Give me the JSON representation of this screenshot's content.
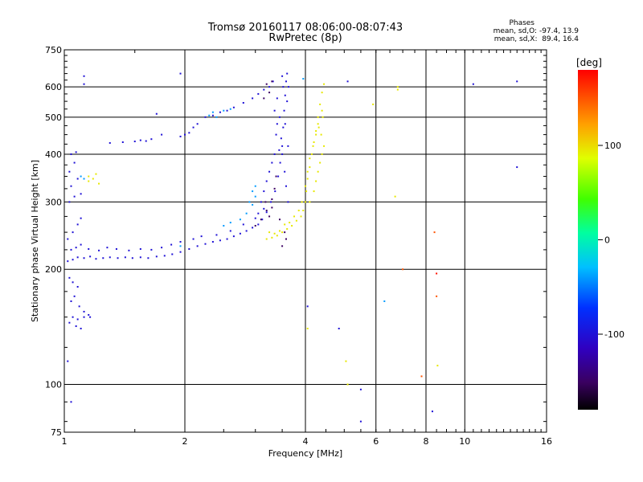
{
  "header": {
    "title_line1": "Tromsø 20160117 08:06:00-08:07:43",
    "title_line2": "RwPretec (8p)"
  },
  "phase_box": {
    "title": "Phases",
    "line_o": "mean, sd,O: -97.4, 13.9",
    "line_x": "mean, sd,X:  89.4, 16.4"
  },
  "colorbar": {
    "unit_label": "[deg]",
    "ticks": [
      {
        "value": 100,
        "label": "100"
      },
      {
        "value": 0,
        "label": "0"
      },
      {
        "value": -100,
        "label": "-100"
      }
    ],
    "range": [
      -180,
      180
    ]
  },
  "chart_data": {
    "type": "scatter",
    "xlabel": "Frequency [MHz]",
    "ylabel": "Stationary phase Virtual Height [km]",
    "xscale": "log",
    "yscale": "log",
    "xlim": [
      1,
      16
    ],
    "ylim": [
      75,
      750
    ],
    "xticks": [
      {
        "value": 1,
        "label": "1"
      },
      {
        "value": 2,
        "label": "2"
      },
      {
        "value": 4,
        "label": "4"
      },
      {
        "value": 6,
        "label": "6"
      },
      {
        "value": 8,
        "label": "8"
      },
      {
        "value": 10,
        "label": "10"
      },
      {
        "value": 16,
        "label": "16"
      }
    ],
    "yticks": [
      {
        "value": 75,
        "label": "75"
      },
      {
        "value": 100,
        "label": "100"
      },
      {
        "value": 200,
        "label": "200"
      },
      {
        "value": 300,
        "label": "300"
      },
      {
        "value": 400,
        "label": "400"
      },
      {
        "value": 500,
        "label": "500"
      },
      {
        "value": 600,
        "label": "600"
      },
      {
        "value": 750,
        "label": "750"
      }
    ],
    "grid": true,
    "series": [
      {
        "phase": -100,
        "points": [
          [
            1.02,
            210
          ],
          [
            1.05,
            212
          ],
          [
            1.08,
            215
          ],
          [
            1.12,
            214
          ],
          [
            1.16,
            216
          ],
          [
            1.2,
            213
          ],
          [
            1.25,
            214
          ],
          [
            1.3,
            215
          ],
          [
            1.36,
            214
          ],
          [
            1.42,
            215
          ],
          [
            1.48,
            214
          ],
          [
            1.55,
            215
          ],
          [
            1.62,
            214
          ],
          [
            1.7,
            216
          ],
          [
            1.78,
            217
          ],
          [
            1.86,
            219
          ],
          [
            1.95,
            222
          ],
          [
            2.05,
            226
          ],
          [
            2.15,
            230
          ],
          [
            2.25,
            233
          ],
          [
            2.35,
            236
          ],
          [
            2.45,
            238
          ],
          [
            2.55,
            240
          ],
          [
            2.65,
            244
          ],
          [
            2.75,
            248
          ],
          [
            2.85,
            252
          ],
          [
            2.95,
            257
          ],
          [
            3.05,
            262
          ],
          [
            3.12,
            270
          ],
          [
            3.2,
            282
          ],
          [
            3.28,
            300
          ],
          [
            3.36,
            320
          ],
          [
            3.42,
            350
          ],
          [
            3.46,
            380
          ],
          [
            3.5,
            420
          ],
          [
            3.52,
            470
          ],
          [
            3.54,
            520
          ],
          [
            3.56,
            570
          ],
          [
            3.58,
            620
          ],
          [
            3.6,
            650
          ],
          [
            1.04,
            225
          ],
          [
            1.07,
            228
          ],
          [
            1.1,
            232
          ],
          [
            1.15,
            226
          ],
          [
            1.22,
            224
          ],
          [
            1.28,
            228
          ],
          [
            1.35,
            226
          ],
          [
            1.45,
            224
          ],
          [
            1.55,
            226
          ],
          [
            1.65,
            225
          ],
          [
            1.75,
            228
          ],
          [
            1.85,
            232
          ],
          [
            1.95,
            236
          ],
          [
            2.1,
            240
          ],
          [
            2.2,
            244
          ],
          [
            2.4,
            246
          ],
          [
            2.6,
            252
          ],
          [
            2.8,
            262
          ],
          [
            3.0,
            272
          ],
          [
            3.15,
            288
          ],
          [
            1.02,
            240
          ],
          [
            1.05,
            250
          ],
          [
            1.08,
            262
          ],
          [
            1.1,
            272
          ],
          [
            1.03,
            300
          ],
          [
            1.06,
            310
          ],
          [
            1.1,
            315
          ],
          [
            1.04,
            330
          ],
          [
            1.08,
            345
          ],
          [
            1.03,
            360
          ],
          [
            1.06,
            380
          ],
          [
            1.04,
            400
          ],
          [
            1.07,
            405
          ],
          [
            1.03,
            190
          ],
          [
            1.05,
            185
          ],
          [
            1.08,
            180
          ],
          [
            1.06,
            170
          ],
          [
            1.04,
            165
          ],
          [
            1.09,
            160
          ],
          [
            1.12,
            155
          ],
          [
            1.15,
            152
          ],
          [
            1.05,
            150
          ],
          [
            1.08,
            148
          ],
          [
            1.12,
            150
          ],
          [
            1.16,
            150
          ],
          [
            1.03,
            145
          ],
          [
            1.07,
            142
          ],
          [
            1.1,
            140
          ],
          [
            1.02,
            115
          ],
          [
            1.04,
            90
          ],
          [
            1.4,
            430
          ],
          [
            1.5,
            432
          ],
          [
            1.55,
            435
          ],
          [
            1.6,
            433
          ],
          [
            1.65,
            438
          ],
          [
            1.3,
            428
          ],
          [
            1.75,
            450
          ],
          [
            1.95,
            445
          ],
          [
            2.0,
            450
          ],
          [
            2.05,
            455
          ],
          [
            2.1,
            470
          ],
          [
            2.15,
            480
          ],
          [
            2.25,
            500
          ],
          [
            2.35,
            505
          ],
          [
            2.45,
            515
          ],
          [
            2.55,
            520
          ],
          [
            2.65,
            530
          ],
          [
            2.8,
            545
          ],
          [
            2.95,
            560
          ],
          [
            3.05,
            575
          ],
          [
            3.15,
            590
          ],
          [
            3.25,
            600
          ],
          [
            3.32,
            620
          ],
          [
            3.35,
            520
          ],
          [
            3.4,
            480
          ],
          [
            3.48,
            440
          ],
          [
            3.5,
            400
          ],
          [
            3.55,
            360
          ],
          [
            3.58,
            330
          ],
          [
            3.62,
            300
          ],
          [
            3.45,
            500
          ],
          [
            3.6,
            550
          ],
          [
            3.63,
            600
          ],
          [
            3.4,
            560
          ],
          [
            3.38,
            450
          ],
          [
            3.44,
            410
          ],
          [
            3.56,
            480
          ],
          [
            3.62,
            420
          ],
          [
            3.52,
            600
          ],
          [
            3.5,
            640
          ],
          [
            3.05,
            280
          ],
          [
            3.1,
            300
          ],
          [
            3.15,
            320
          ],
          [
            3.2,
            340
          ],
          [
            3.25,
            360
          ],
          [
            3.3,
            380
          ],
          [
            3.35,
            400
          ],
          [
            5.1,
            620
          ],
          [
            10.5,
            610
          ],
          [
            13.5,
            620
          ],
          [
            1.12,
            640
          ],
          [
            1.12,
            610
          ],
          [
            1.95,
            650
          ],
          [
            1.7,
            510
          ],
          [
            13.5,
            370
          ],
          [
            4.85,
            140
          ],
          [
            5.5,
            97
          ],
          [
            5.5,
            80
          ],
          [
            8.3,
            85
          ],
          [
            4.05,
            160
          ]
        ]
      },
      {
        "phase": -150,
        "points": [
          [
            3.0,
            260
          ],
          [
            3.1,
            270
          ],
          [
            3.2,
            285
          ],
          [
            3.3,
            305
          ],
          [
            3.35,
            325
          ],
          [
            3.3,
            290
          ],
          [
            3.25,
            275
          ],
          [
            3.38,
            350
          ],
          [
            3.18,
            300
          ],
          [
            3.5,
            230
          ],
          [
            3.55,
            250
          ],
          [
            3.58,
            240
          ],
          [
            3.45,
            270
          ],
          [
            3.3,
            620
          ],
          [
            3.2,
            610
          ],
          [
            3.15,
            560
          ],
          [
            3.25,
            580
          ]
        ]
      },
      {
        "phase": -40,
        "points": [
          [
            2.5,
            260
          ],
          [
            2.6,
            265
          ],
          [
            2.75,
            270
          ],
          [
            2.85,
            280
          ],
          [
            2.95,
            295
          ],
          [
            3.0,
            310
          ],
          [
            2.3,
            505
          ],
          [
            2.35,
            515
          ],
          [
            2.5,
            520
          ],
          [
            2.6,
            525
          ],
          [
            2.4,
            500
          ],
          [
            1.1,
            350
          ],
          [
            1.12,
            345
          ],
          [
            1.95,
            230
          ],
          [
            6.3,
            165
          ],
          [
            3.95,
            630
          ],
          [
            2.9,
            300
          ],
          [
            2.95,
            320
          ],
          [
            3.0,
            330
          ]
        ]
      },
      {
        "phase": 95,
        "points": [
          [
            3.2,
            240
          ],
          [
            3.3,
            242
          ],
          [
            3.4,
            245
          ],
          [
            3.5,
            250
          ],
          [
            3.6,
            255
          ],
          [
            3.7,
            260
          ],
          [
            3.8,
            268
          ],
          [
            3.9,
            275
          ],
          [
            3.95,
            285
          ],
          [
            4.0,
            300
          ],
          [
            4.02,
            320
          ],
          [
            4.05,
            345
          ],
          [
            4.1,
            370
          ],
          [
            4.15,
            400
          ],
          [
            4.2,
            430
          ],
          [
            4.25,
            460
          ],
          [
            4.3,
            500
          ],
          [
            4.35,
            540
          ],
          [
            4.4,
            580
          ],
          [
            4.45,
            610
          ],
          [
            3.25,
            250
          ],
          [
            3.35,
            248
          ],
          [
            3.45,
            252
          ],
          [
            3.55,
            262
          ],
          [
            3.65,
            265
          ],
          [
            3.75,
            275
          ],
          [
            3.85,
            285
          ],
          [
            3.92,
            300
          ],
          [
            4.0,
            330
          ],
          [
            4.05,
            360
          ],
          [
            4.1,
            390
          ],
          [
            4.18,
            420
          ],
          [
            4.25,
            450
          ],
          [
            4.3,
            480
          ],
          [
            4.4,
            520
          ],
          [
            4.1,
            300
          ],
          [
            4.2,
            320
          ],
          [
            4.25,
            340
          ],
          [
            4.3,
            360
          ],
          [
            4.35,
            380
          ],
          [
            4.4,
            400
          ],
          [
            4.45,
            420
          ],
          [
            4.38,
            450
          ],
          [
            4.32,
            470
          ],
          [
            4.42,
            500
          ],
          [
            1.15,
            350
          ],
          [
            1.18,
            345
          ],
          [
            1.2,
            355
          ],
          [
            1.15,
            340
          ],
          [
            1.22,
            335
          ],
          [
            6.8,
            590
          ],
          [
            6.8,
            600
          ],
          [
            4.05,
            140
          ],
          [
            5.05,
            115
          ],
          [
            8.55,
            112
          ],
          [
            5.9,
            540
          ],
          [
            6.7,
            310
          ],
          [
            5.1,
            100
          ]
        ]
      },
      {
        "phase": 150,
        "points": [
          [
            7.0,
            200
          ],
          [
            7.8,
            105
          ],
          [
            8.5,
            170
          ],
          [
            8.4,
            250
          ]
        ]
      },
      {
        "phase": 175,
        "points": [
          [
            8.5,
            195
          ]
        ]
      }
    ]
  }
}
